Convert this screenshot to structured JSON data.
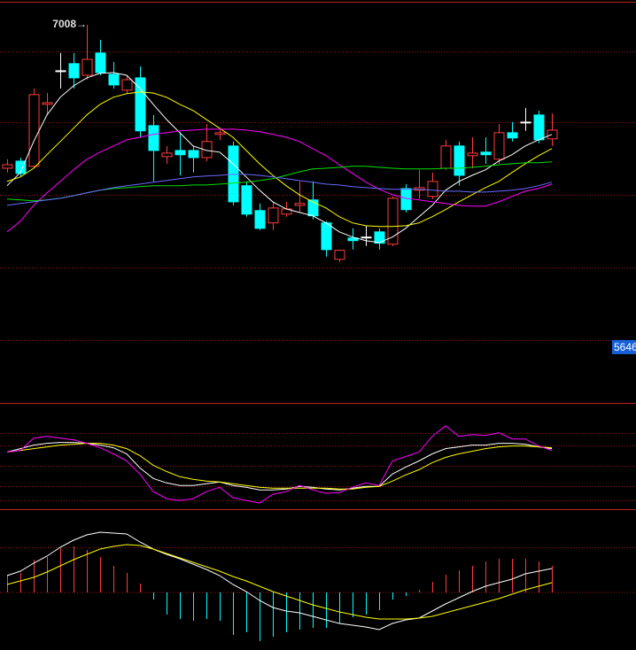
{
  "chart_data": [
    {
      "type": "candlestick",
      "ylim": [
        5410,
        7113
      ],
      "up_color": "#ff3c3c",
      "down_color": "#00ffff",
      "flat_color": "#ffffff",
      "high": [
        6440,
        6447,
        6739,
        6720,
        6889,
        6889,
        7008,
        6945,
        6851,
        6795,
        6832,
        6627,
        6496,
        6552,
        6496,
        6589,
        6571,
        6515,
        6346,
        6253,
        6260,
        6260,
        6346,
        6346,
        6178,
        6058,
        6148,
        6159,
        6148,
        6283,
        6335,
        6395,
        6384,
        6522,
        6515,
        6533,
        6533,
        6589,
        6597,
        6657,
        6645,
        6634
      ],
      "open": [
        6402,
        6432,
        6410,
        6672,
        6814,
        6844,
        6795,
        6889,
        6799,
        6732,
        6784,
        6582,
        6451,
        6477,
        6477,
        6447,
        6545,
        6496,
        6328,
        6223,
        6171,
        6208,
        6245,
        6268,
        6171,
        6017,
        6107,
        6111,
        6133,
        6081,
        6316,
        6309,
        6283,
        6402,
        6496,
        6455,
        6470,
        6440,
        6552,
        6597,
        6627,
        6526
      ],
      "close": [
        6417,
        6380,
        6713,
        6679,
        6814,
        6784,
        6862,
        6806,
        6754,
        6776,
        6560,
        6477,
        6466,
        6459,
        6447,
        6515,
        6552,
        6260,
        6208,
        6148,
        6234,
        6230,
        6253,
        6201,
        6058,
        6055,
        6096,
        6111,
        6085,
        6275,
        6227,
        6320,
        6346,
        6496,
        6372,
        6466,
        6459,
        6552,
        6530,
        6597,
        6522,
        6563
      ],
      "low": [
        6384,
        6365,
        6402,
        6627,
        6739,
        6739,
        6776,
        6795,
        6739,
        6720,
        6533,
        6346,
        6421,
        6372,
        6384,
        6432,
        6522,
        6245,
        6197,
        6141,
        6141,
        6197,
        6215,
        6186,
        6028,
        6006,
        6058,
        6073,
        6058,
        6073,
        6215,
        6272,
        6272,
        6395,
        6328,
        6402,
        6421,
        6421,
        6515,
        6560,
        6507,
        6496
      ],
      "series": [
        {
          "color": "#ffffff",
          "values": [
            6328,
            6384,
            6515,
            6627,
            6702,
            6750,
            6784,
            6803,
            6806,
            6795,
            6739,
            6672,
            6608,
            6552,
            6496,
            6477,
            6470,
            6421,
            6365,
            6309,
            6260,
            6230,
            6215,
            6201,
            6171,
            6133,
            6111,
            6096,
            6088,
            6111,
            6148,
            6197,
            6245,
            6309,
            6346,
            6372,
            6395,
            6432,
            6459,
            6496,
            6522,
            6545
          ]
        },
        {
          "color": "#ffff00",
          "values": [
            6346,
            6365,
            6402,
            6459,
            6515,
            6571,
            6627,
            6672,
            6702,
            6717,
            6724,
            6720,
            6702,
            6672,
            6646,
            6608,
            6571,
            6533,
            6477,
            6421,
            6372,
            6328,
            6290,
            6260,
            6234,
            6197,
            6171,
            6159,
            6156,
            6156,
            6159,
            6171,
            6197,
            6227,
            6260,
            6290,
            6320,
            6346,
            6384,
            6421,
            6455,
            6485
          ]
        },
        {
          "color": "#ff00ff",
          "values": [
            6133,
            6178,
            6245,
            6298,
            6346,
            6395,
            6440,
            6470,
            6496,
            6522,
            6533,
            6545,
            6552,
            6560,
            6563,
            6567,
            6567,
            6567,
            6563,
            6556,
            6545,
            6533,
            6515,
            6485,
            6455,
            6417,
            6380,
            6343,
            6313,
            6290,
            6275,
            6268,
            6260,
            6253,
            6245,
            6242,
            6242,
            6260,
            6283,
            6305,
            6316,
            6335
          ]
        },
        {
          "color": "#00e000",
          "values": [
            6272,
            6268,
            6264,
            6268,
            6275,
            6286,
            6298,
            6309,
            6316,
            6320,
            6324,
            6328,
            6328,
            6328,
            6331,
            6331,
            6335,
            6339,
            6343,
            6350,
            6358,
            6372,
            6387,
            6399,
            6402,
            6406,
            6410,
            6410,
            6406,
            6402,
            6399,
            6399,
            6399,
            6402,
            6402,
            6406,
            6410,
            6417,
            6421,
            6425,
            6425,
            6429
          ]
        },
        {
          "color": "#6a6aff",
          "values": [
            6245,
            6253,
            6260,
            6268,
            6275,
            6286,
            6298,
            6309,
            6320,
            6328,
            6335,
            6343,
            6350,
            6358,
            6365,
            6369,
            6372,
            6376,
            6376,
            6372,
            6365,
            6358,
            6350,
            6343,
            6335,
            6331,
            6324,
            6320,
            6316,
            6313,
            6313,
            6313,
            6309,
            6305,
            6305,
            6301,
            6301,
            6305,
            6309,
            6316,
            6328,
            6343
          ]
        }
      ],
      "high_label": "7008→",
      "price_tag": 5646,
      "price_tag_color": "#1560d8"
    },
    {
      "type": "line",
      "ylim": [
        -10,
        110
      ],
      "series": [
        {
          "color": "#ffffff",
          "values": [
            55,
            59,
            63,
            65,
            66,
            66,
            65,
            63,
            60,
            53,
            37,
            25,
            20,
            17,
            17,
            19,
            21,
            17,
            15,
            12,
            12,
            13,
            16,
            15,
            13,
            12,
            14,
            16,
            16,
            30,
            38,
            45,
            53,
            59,
            61,
            63,
            63,
            65,
            65,
            64,
            61,
            59
          ]
        },
        {
          "color": "#ffff00",
          "values": [
            55,
            57,
            59,
            61,
            63,
            64,
            65,
            65,
            63,
            59,
            51,
            40,
            33,
            27,
            24,
            22,
            21,
            19,
            17,
            15,
            14,
            14,
            14,
            14,
            14,
            13,
            13,
            15,
            16,
            22,
            29,
            35,
            43,
            49,
            53,
            56,
            59,
            61,
            62,
            62,
            61,
            60
          ]
        },
        {
          "color": "#ff00ff",
          "values": [
            55,
            57,
            71,
            73,
            71,
            69,
            65,
            60,
            53,
            45,
            30,
            10,
            2,
            0,
            2,
            10,
            15,
            3,
            0,
            -3,
            7,
            10,
            17,
            12,
            8,
            9,
            15,
            20,
            17,
            45,
            50,
            55,
            73,
            85,
            73,
            75,
            74,
            77,
            70,
            70,
            62,
            57
          ]
        }
      ]
    },
    {
      "type": "macd",
      "ylim": [
        -65,
        93
      ],
      "up_color": "#ff3c3c",
      "down_color": "#00ffff",
      "histogram": [
        20,
        22,
        37,
        40,
        50,
        52,
        48,
        40,
        30,
        22,
        10,
        -8,
        -25,
        -30,
        -32,
        -30,
        -32,
        -48,
        -45,
        -55,
        -50,
        -45,
        -42,
        -40,
        -40,
        -35,
        -28,
        -25,
        -20,
        -8,
        -4,
        3,
        12,
        20,
        25,
        30,
        35,
        38,
        38,
        38,
        35,
        30
      ],
      "series": [
        {
          "color": "#ffffff",
          "values": [
            19,
            24,
            33,
            41,
            51,
            59,
            65,
            68,
            67,
            66,
            57,
            49,
            43,
            38,
            32,
            26,
            19,
            9,
            1,
            -9,
            -17,
            -21,
            -23,
            -27,
            -31,
            -35,
            -37,
            -39,
            -42,
            -35,
            -31,
            -29,
            -21,
            -13,
            -6,
            1,
            7,
            11,
            15,
            21,
            24,
            27
          ]
        },
        {
          "color": "#ffff00",
          "values": [
            9,
            13,
            17,
            23,
            30,
            37,
            43,
            49,
            52,
            54,
            53,
            49,
            44,
            39,
            34,
            29,
            24,
            18,
            13,
            7,
            1,
            -4,
            -9,
            -14,
            -18,
            -22,
            -25,
            -28,
            -30,
            -30,
            -30,
            -29,
            -27,
            -23,
            -19,
            -15,
            -11,
            -7,
            -2,
            3,
            7,
            11
          ]
        }
      ]
    }
  ]
}
